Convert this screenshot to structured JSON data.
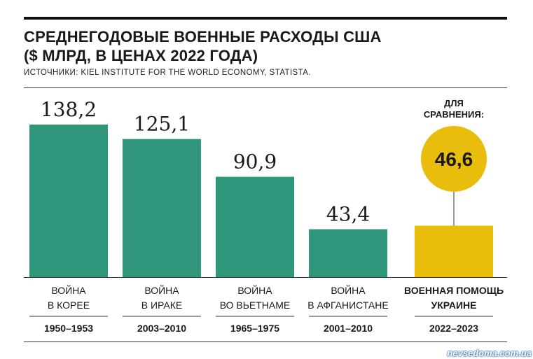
{
  "header": {
    "title_line1": "СРЕДНЕГОДОВЫЕ ВОЕННЫЕ РАСХОДЫ США",
    "title_line2": "($ МЛРД, В ЦЕНАХ 2022 ГОДА)",
    "source": "ИСТОЧНИКИ: KIEL INSTITUTE FOR THE WORLD ECONOMY, STATISTA."
  },
  "watermark": "nevsedoma.com.ua",
  "colors": {
    "bar": "#2f957b",
    "highlight": "#e8bd0c",
    "text": "#1a1a1a"
  },
  "chart_data": {
    "type": "bar",
    "title": "СРЕДНЕГОДОВЫЕ ВОЕННЫЕ РАСХОДЫ США ($ МЛРД, В ЦЕНАХ 2022 ГОДА)",
    "ylim": [
      0,
      150
    ],
    "grid": false,
    "legend": "none",
    "comparison_label": [
      "ДЛЯ",
      "СРАВНЕНИЯ:"
    ],
    "bars": [
      {
        "label": [
          "ВОЙНА",
          "В КОРЕЕ"
        ],
        "years": "1950–1953",
        "value": 138.2,
        "value_label": "138,2",
        "highlight": false
      },
      {
        "label": [
          "ВОЙНА",
          "В ИРАКЕ"
        ],
        "years": "2003–2010",
        "value": 125.1,
        "value_label": "125,1",
        "highlight": false
      },
      {
        "label": [
          "ВОЙНА",
          "ВО ВЬЕТНАМЕ"
        ],
        "years": "1965–1975",
        "value": 90.9,
        "value_label": "90,9",
        "highlight": false
      },
      {
        "label": [
          "ВОЙНА",
          "В АФГАНИСТАНЕ"
        ],
        "years": "2001–2010",
        "value": 43.4,
        "value_label": "43,4",
        "highlight": false
      },
      {
        "label": [
          "ВОЕННАЯ ПОМОЩЬ",
          "УКРАИНЕ"
        ],
        "years": "2022–2023",
        "value": 46.6,
        "value_label": "46,6",
        "highlight": true
      }
    ]
  }
}
